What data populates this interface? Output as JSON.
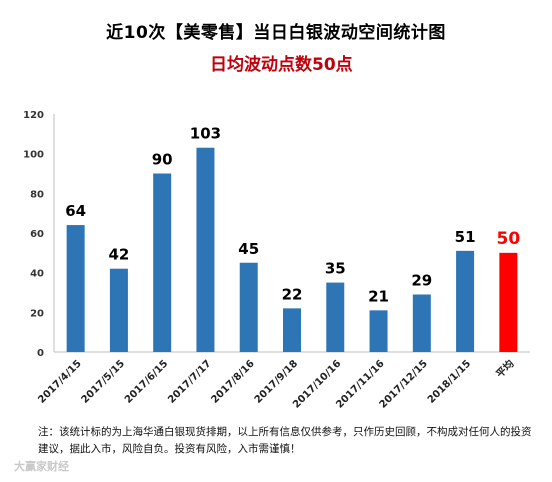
{
  "chart_data": {
    "type": "bar",
    "title": "近10次【美零售】当日白银波动空间统计图",
    "subtitle": "日均波动点数50点",
    "categories": [
      "2017/4/15",
      "2017/5/15",
      "2017/6/15",
      "2017/7/17",
      "2017/8/16",
      "2017/9/18",
      "2017/10/16",
      "2017/11/16",
      "2017/12/15",
      "2018/1/15",
      "平均"
    ],
    "values": [
      64,
      42,
      90,
      103,
      45,
      22,
      35,
      21,
      29,
      51,
      50
    ],
    "ylim": [
      0,
      120
    ],
    "yticks": [
      0,
      20,
      40,
      60,
      80,
      100,
      120
    ],
    "grid": false,
    "xlabel": "",
    "ylabel": "",
    "colors": {
      "bar": "#2e75b6",
      "highlight": "#ff0000"
    },
    "highlight_index": 10
  },
  "note": "注：该统计标的为上海华通白银现货排期，以上所有信息仅供参考，只作历史回顾，不构成对任何人的投资建议，据此入市，风险自负。投资有风险，入市需谨慎！",
  "watermark": "大赢家财经"
}
